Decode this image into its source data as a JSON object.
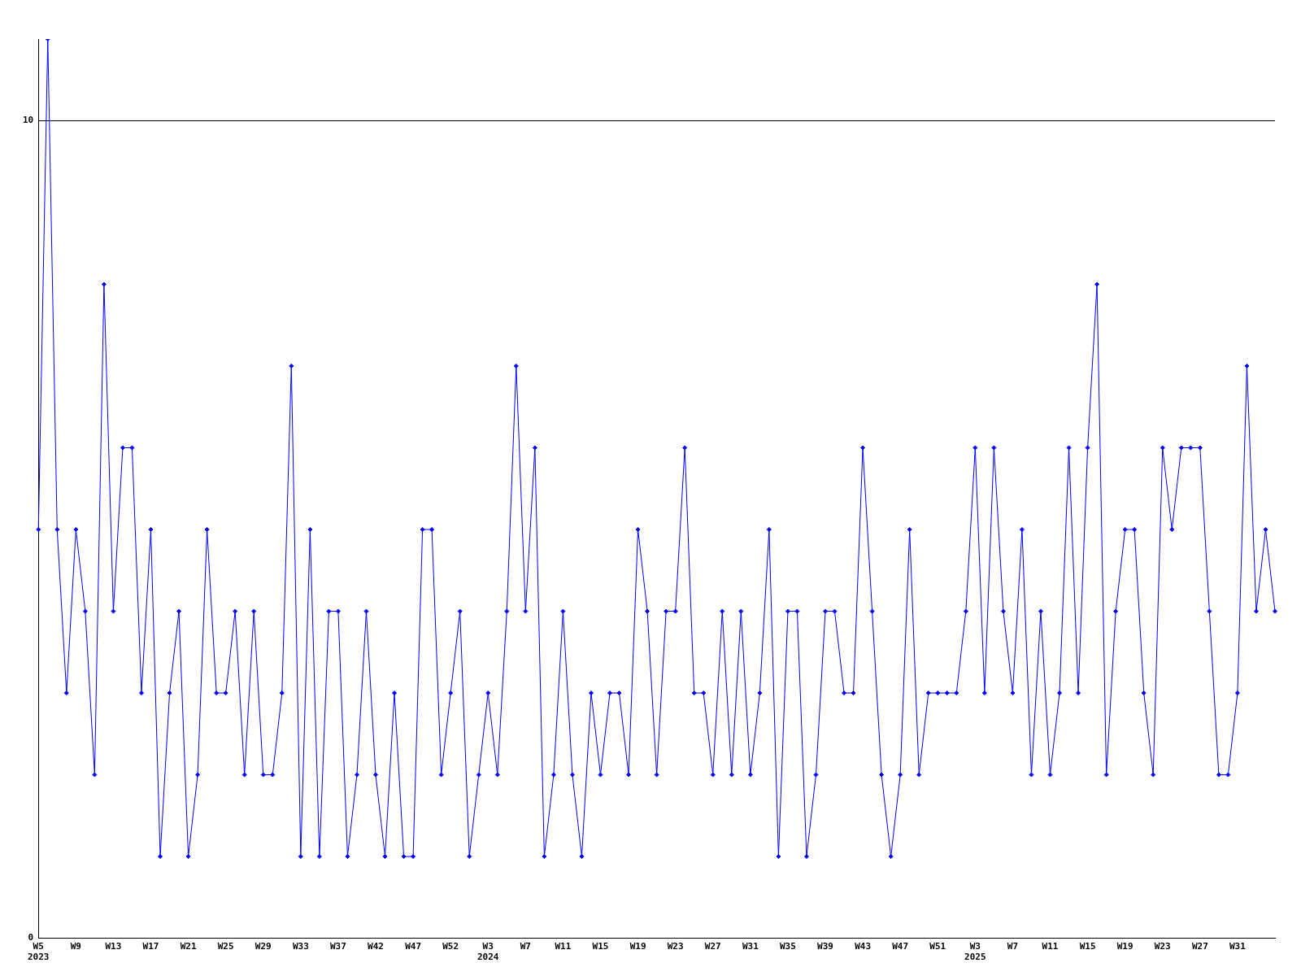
{
  "chart_data": {
    "type": "line",
    "categories": [
      "W5\n2023",
      null,
      null,
      null,
      "W9",
      null,
      null,
      null,
      "W13",
      null,
      null,
      null,
      "W17",
      null,
      null,
      null,
      "W21",
      null,
      null,
      null,
      "W25",
      null,
      null,
      null,
      "W29",
      null,
      null,
      null,
      "W33",
      null,
      null,
      null,
      "W37",
      null,
      null,
      null,
      "W42",
      null,
      null,
      null,
      "W47",
      null,
      null,
      null,
      "W52",
      null,
      null,
      null,
      "W3\n2024",
      null,
      null,
      null,
      "W7",
      null,
      null,
      null,
      "W11",
      null,
      null,
      null,
      "W15",
      null,
      null,
      null,
      "W19",
      null,
      null,
      null,
      "W23",
      null,
      null,
      null,
      "W27",
      null,
      null,
      null,
      "W31",
      null,
      null,
      null,
      "W35",
      null,
      null,
      null,
      "W39",
      null,
      null,
      null,
      "W43",
      null,
      null,
      null,
      "W47",
      null,
      null,
      null,
      "W51",
      null,
      null,
      null,
      "W3\n2025",
      null,
      null,
      null,
      "W7",
      null,
      null,
      null,
      "W11",
      null,
      null,
      null,
      "W15",
      null,
      null,
      null,
      "W19",
      null,
      null,
      null,
      "W23",
      null,
      null,
      null,
      "W27",
      null,
      null,
      null,
      "W31",
      null,
      null,
      null,
      null
    ],
    "series": [
      {
        "color": "#0000ff",
        "values": [
          5,
          11,
          5,
          3,
          5,
          4,
          2,
          8,
          4,
          6,
          6,
          3,
          5,
          1,
          3,
          4,
          1,
          2,
          5,
          3,
          3,
          4,
          2,
          4,
          2,
          2,
          3,
          7,
          1,
          5,
          1,
          4,
          4,
          1,
          2,
          4,
          2,
          1,
          3,
          1,
          1,
          5,
          5,
          2,
          3,
          4,
          1,
          2,
          3,
          2,
          4,
          7,
          4,
          6,
          1,
          2,
          4,
          2,
          1,
          3,
          2,
          3,
          3,
          2,
          5,
          4,
          2,
          4,
          4,
          6,
          3,
          3,
          2,
          4,
          2,
          4,
          2,
          3,
          5,
          1,
          4,
          4,
          1,
          2,
          4,
          4,
          3,
          3,
          6,
          4,
          2,
          1,
          2,
          5,
          2,
          3,
          3,
          3,
          3,
          4,
          6,
          3,
          6,
          4,
          3,
          5,
          2,
          4,
          2,
          3,
          6,
          3,
          6,
          8,
          2,
          4,
          5,
          5,
          3,
          2,
          6,
          5,
          6,
          6,
          6,
          4,
          2,
          2,
          3,
          7,
          4,
          5,
          4
        ]
      }
    ],
    "ylim": [
      0,
      11
    ],
    "yticks": [
      0,
      10
    ],
    "grid": "y",
    "legend": false,
    "marker": "diamond",
    "line_style": "solid"
  }
}
